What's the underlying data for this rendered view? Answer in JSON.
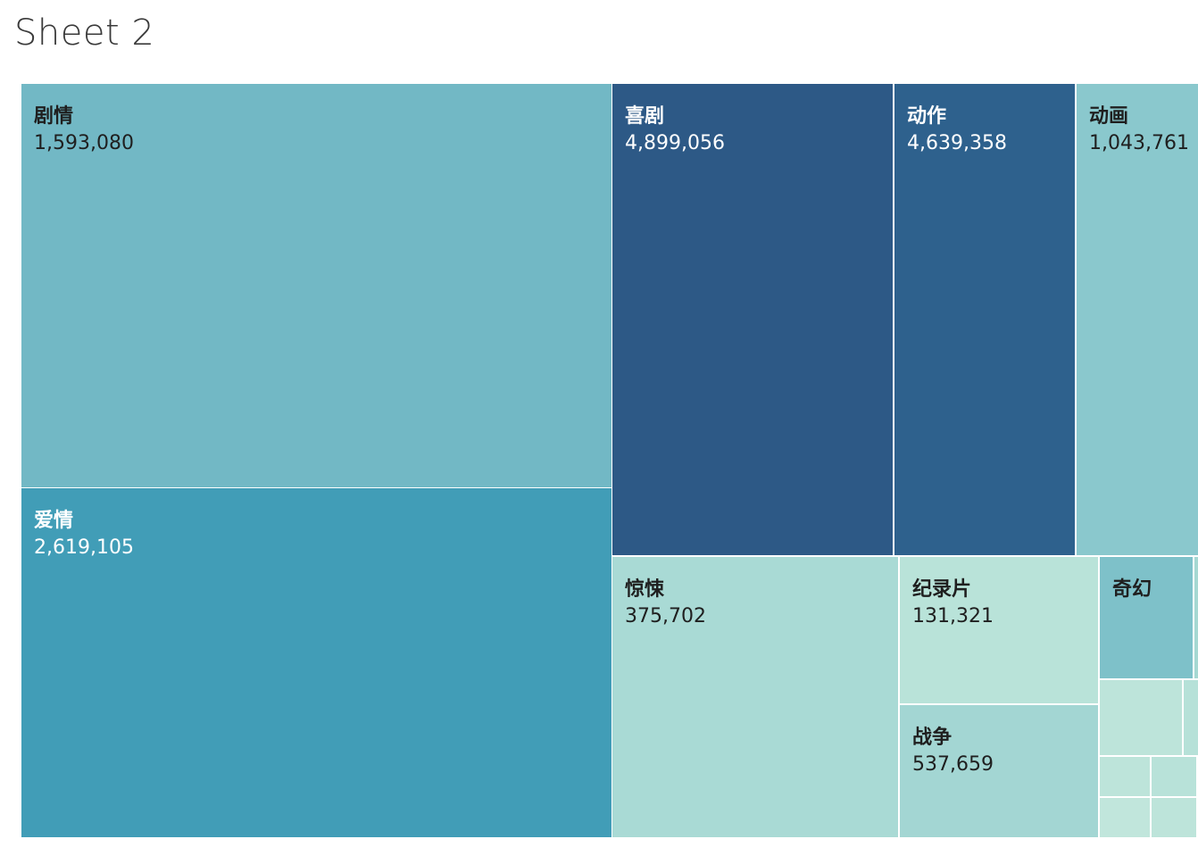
{
  "sheet": {
    "title": "Sheet 2"
  },
  "chart_data": {
    "type": "treemap",
    "items": [
      {
        "label": "剧情",
        "value": "1,593,080",
        "color": "#72b8c5",
        "text_color": "#1f1f1f"
      },
      {
        "label": "爱情",
        "value": "2,619,105",
        "color": "#419db7",
        "text_color": "#ffffff"
      },
      {
        "label": "喜剧",
        "value": "4,899,056",
        "color": "#2d5986",
        "text_color": "#ffffff"
      },
      {
        "label": "动作",
        "value": "4,639,358",
        "color": "#2e618d",
        "text_color": "#ffffff"
      },
      {
        "label": "动画",
        "value": "1,043,761",
        "color": "#8ac8cd",
        "text_color": "#1f1f1f"
      },
      {
        "label": "惊悚",
        "value": "375,702",
        "color": "#a9dad5",
        "text_color": "#1f1f1f"
      },
      {
        "label": "纪录片",
        "value": "131,321",
        "color": "#b9e3d9",
        "text_color": "#1f1f1f"
      },
      {
        "label": "战争",
        "value": "537,659",
        "color": "#a3d6d3",
        "text_color": "#1f1f1f"
      },
      {
        "label": "奇幻",
        "value": "",
        "color": "#7ec1c9",
        "text_color": "#1f1f1f"
      },
      {
        "label": "",
        "value": "",
        "color": "#a6d8d2",
        "text_color": "#1f1f1f"
      },
      {
        "label": "",
        "value": "",
        "color": "#bde4da",
        "text_color": "#1f1f1f"
      },
      {
        "label": "",
        "value": "",
        "color": "#b6e1d8",
        "text_color": "#1f1f1f"
      },
      {
        "label": "",
        "value": "",
        "color": "#bde4da",
        "text_color": "#1f1f1f"
      },
      {
        "label": "",
        "value": "",
        "color": "#b8e2d9",
        "text_color": "#1f1f1f"
      },
      {
        "label": "",
        "value": "",
        "color": "#c1e6dc",
        "text_color": "#1f1f1f"
      },
      {
        "label": "",
        "value": "",
        "color": "#bde4da",
        "text_color": "#1f1f1f"
      },
      {
        "label": "",
        "value": "",
        "color": "#bce4da",
        "text_color": "#1f1f1f"
      },
      {
        "label": "",
        "value": "",
        "color": "#c1e6dc",
        "text_color": "#1f1f1f"
      }
    ]
  }
}
